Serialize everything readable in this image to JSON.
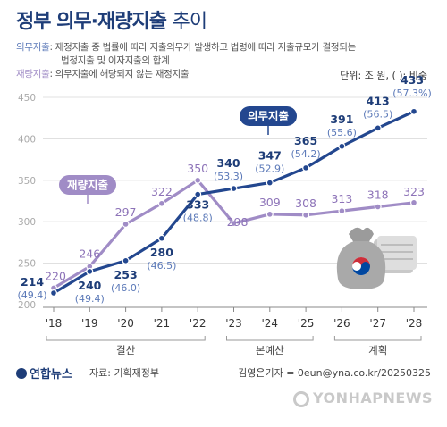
{
  "header": {
    "title": "정부 의무·재량지출",
    "title_suffix": "추이",
    "def_a_term": "의무지출",
    "def_a_text": ": 재정지출 중 법률에 따라 지출의무가 발생하고 법령에 따라 지출규모가 결정되는",
    "def_a_cont": "법정지출 및 이자지출의 합계",
    "def_b_term": "재량지출",
    "def_b_text": ": 의무지출에 해당되지 않는 재정지출",
    "unit": "단위: 조 원, (  ): 비중"
  },
  "footer": {
    "logo": "연합뉴스",
    "source": "자료: 기획재정부",
    "credit": "김영은기자 = 0eun@yna.co.kr/20250325",
    "watermark": "YONHAPNEWS"
  },
  "colors": {
    "mandatory": "#23478f",
    "discretionary": "#a08cc6",
    "grid": "#d6d6d6",
    "label_mandatory": "#1e3d78",
    "label_share": "#5b79b8",
    "label_discretionary": "#8d73b8"
  },
  "chart_data": {
    "type": "line",
    "categories": [
      "'18",
      "'19",
      "'20",
      "'21",
      "'22",
      "'23",
      "'24",
      "'25",
      "'26",
      "'27",
      "'28"
    ],
    "y_ticks": [
      "200",
      "250",
      "300",
      "350",
      "400",
      "450"
    ],
    "ylim": [
      200,
      450
    ],
    "grid": true,
    "series": [
      {
        "name": "의무지출",
        "values": [
          214,
          240,
          253,
          280,
          333,
          340,
          347,
          365,
          391,
          413,
          433
        ],
        "share_labels": [
          "(49.4)",
          "(49.4)",
          "(46.0)",
          "(46.5)",
          "(48.8)",
          "(53.3)",
          "(52.9)",
          "(54.2)",
          "(55.6)",
          "(56.5)",
          "(57.3%)"
        ]
      },
      {
        "name": "재량지출",
        "values": [
          220,
          246,
          297,
          322,
          350,
          298,
          309,
          308,
          313,
          318,
          323
        ]
      }
    ],
    "groups": [
      {
        "label": "결산",
        "from": 0,
        "to": 4
      },
      {
        "label": "본예산",
        "from": 5,
        "to": 7
      },
      {
        "label": "계획",
        "from": 8,
        "to": 10
      }
    ]
  }
}
